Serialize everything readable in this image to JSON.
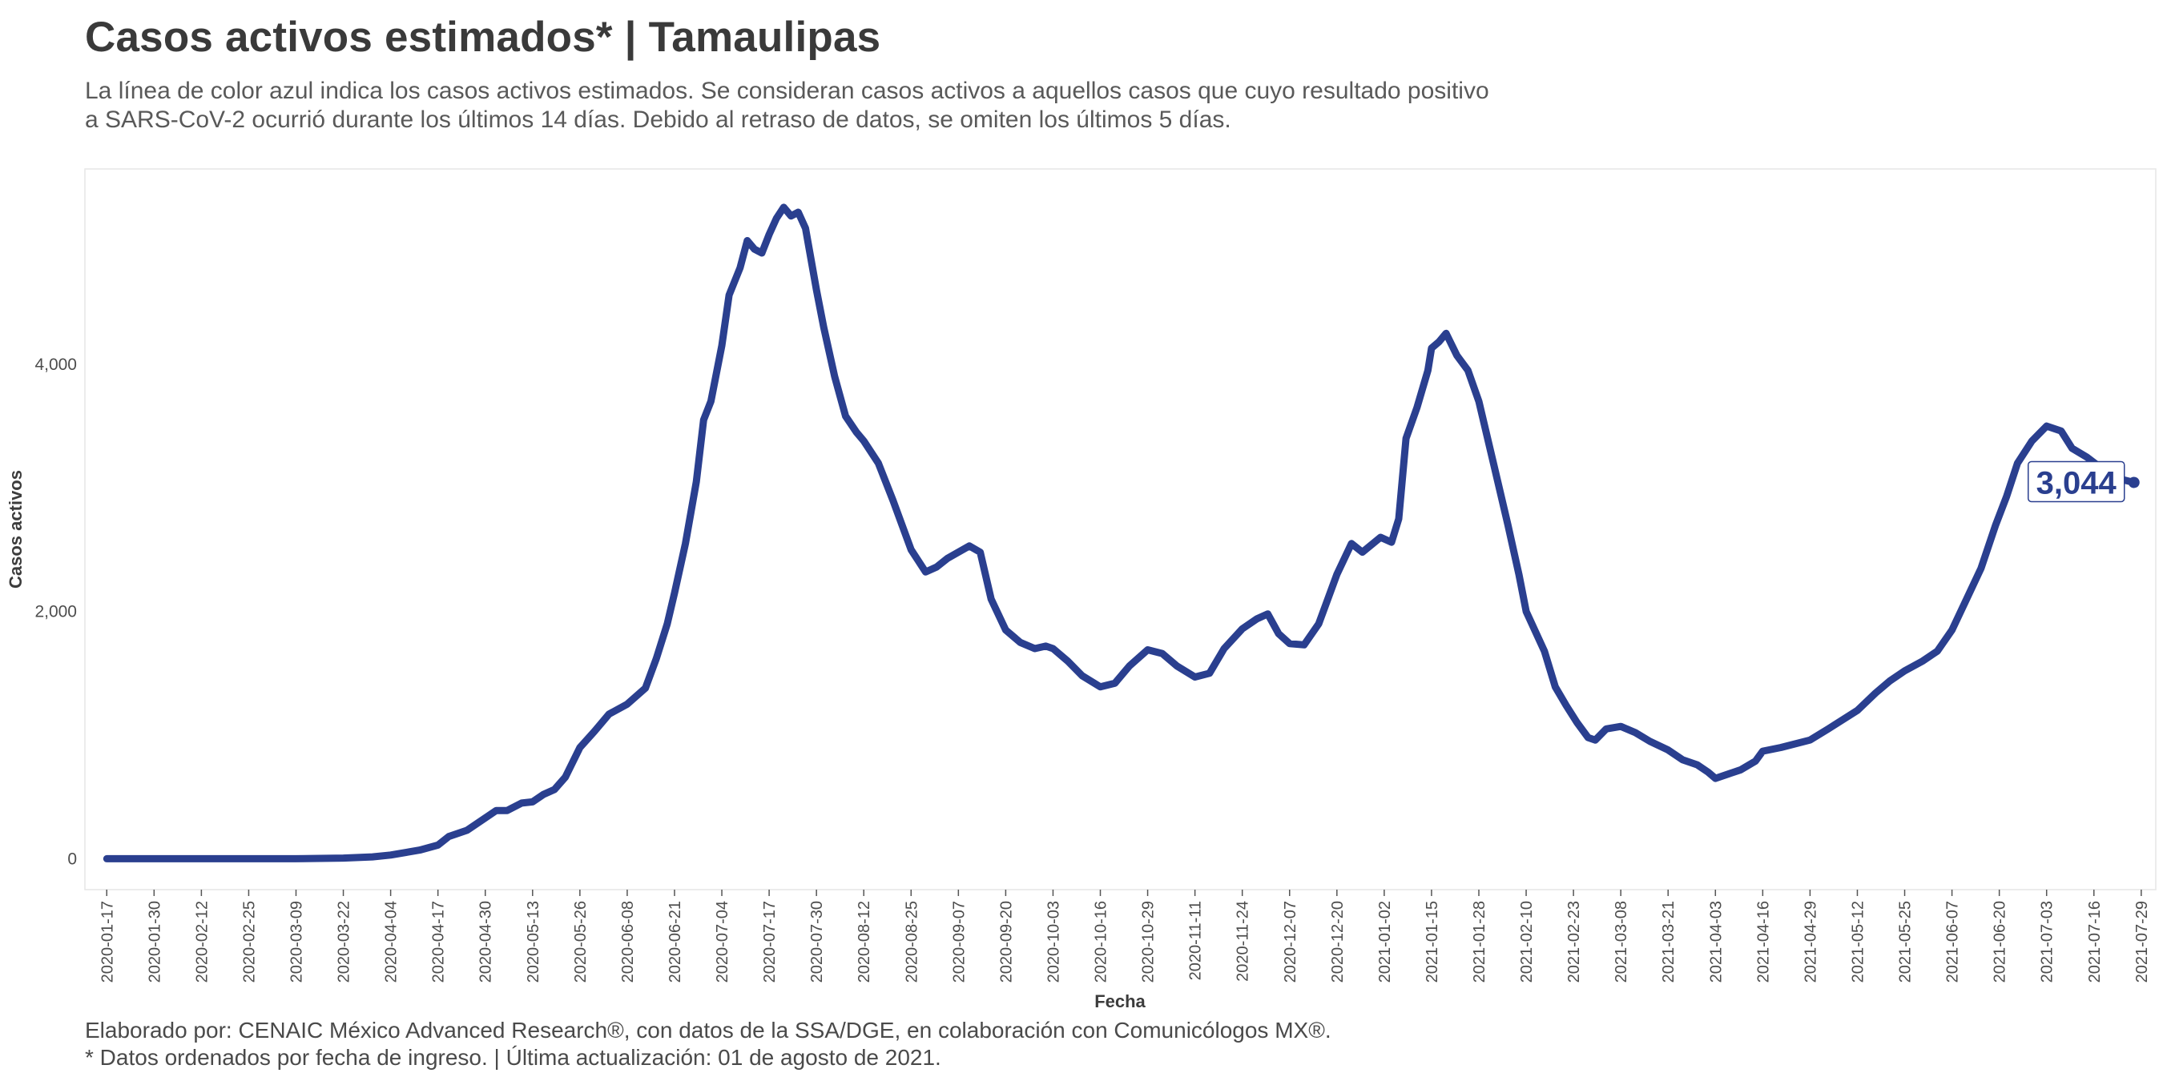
{
  "header": {
    "title": "Casos activos estimados* | Tamaulipas",
    "subtitle_line1": "La línea de color azul indica los casos activos estimados. Se consideran casos activos a aquellos casos que cuyo resultado positivo",
    "subtitle_line2": "a SARS-CoV-2 ocurrió durante los últimos 14 días. Debido al retraso de datos, se omiten los últimos 5 días."
  },
  "caption": {
    "line1": "Elaborado por: CENAIC México Advanced Research®, con datos de la SSA/DGE, en colaboración con Comunicólogos MX®.",
    "line2": "* Datos ordenados por fecha de ingreso. | Última actualización: 01 de agosto de 2021."
  },
  "chart_data": {
    "type": "line",
    "xlabel": "Fecha",
    "ylabel": "Casos activos",
    "xlim": [
      "2020-01-11",
      "2021-08-02"
    ],
    "ylim": [
      -250,
      5580
    ],
    "y_ticks": [
      0,
      2000,
      4000
    ],
    "y_tick_labels": [
      "0",
      "2,000",
      "4,000"
    ],
    "x_tick_labels": [
      "2020-01-17",
      "2020-01-30",
      "2020-02-12",
      "2020-02-25",
      "2020-03-09",
      "2020-03-22",
      "2020-04-04",
      "2020-04-17",
      "2020-04-30",
      "2020-05-13",
      "2020-05-26",
      "2020-06-08",
      "2020-06-21",
      "2020-07-04",
      "2020-07-17",
      "2020-07-30",
      "2020-08-12",
      "2020-08-25",
      "2020-09-07",
      "2020-09-20",
      "2020-10-03",
      "2020-10-16",
      "2020-10-29",
      "2020-11-11",
      "2020-11-24",
      "2020-12-07",
      "2020-12-20",
      "2021-01-02",
      "2021-01-15",
      "2021-01-28",
      "2021-02-10",
      "2021-02-23",
      "2021-03-08",
      "2021-03-21",
      "2021-04-03",
      "2021-04-16",
      "2021-04-29",
      "2021-05-12",
      "2021-05-25",
      "2021-06-07",
      "2021-06-20",
      "2021-07-03",
      "2021-07-16",
      "2021-07-29"
    ],
    "grid": false,
    "line_color": "#2a3f8f",
    "last_value_label": "3,044",
    "series": [
      {
        "points": [
          [
            "2020-01-17",
            0
          ],
          [
            "2020-02-12",
            0
          ],
          [
            "2020-03-09",
            0
          ],
          [
            "2020-03-22",
            5
          ],
          [
            "2020-03-30",
            15
          ],
          [
            "2020-04-04",
            30
          ],
          [
            "2020-04-12",
            70
          ],
          [
            "2020-04-17",
            110
          ],
          [
            "2020-04-20",
            180
          ],
          [
            "2020-04-25",
            230
          ],
          [
            "2020-04-30",
            330
          ],
          [
            "2020-05-03",
            390
          ],
          [
            "2020-05-06",
            390
          ],
          [
            "2020-05-10",
            450
          ],
          [
            "2020-05-13",
            460
          ],
          [
            "2020-05-16",
            520
          ],
          [
            "2020-05-19",
            560
          ],
          [
            "2020-05-22",
            660
          ],
          [
            "2020-05-26",
            900
          ],
          [
            "2020-05-30",
            1030
          ],
          [
            "2020-06-03",
            1170
          ],
          [
            "2020-06-08",
            1250
          ],
          [
            "2020-06-13",
            1380
          ],
          [
            "2020-06-16",
            1620
          ],
          [
            "2020-06-19",
            1900
          ],
          [
            "2020-06-21",
            2150
          ],
          [
            "2020-06-24",
            2550
          ],
          [
            "2020-06-27",
            3050
          ],
          [
            "2020-06-29",
            3550
          ],
          [
            "2020-07-01",
            3700
          ],
          [
            "2020-07-04",
            4150
          ],
          [
            "2020-07-06",
            4560
          ],
          [
            "2020-07-09",
            4780
          ],
          [
            "2020-07-11",
            5000
          ],
          [
            "2020-07-13",
            4930
          ],
          [
            "2020-07-15",
            4900
          ],
          [
            "2020-07-17",
            5050
          ],
          [
            "2020-07-19",
            5180
          ],
          [
            "2020-07-21",
            5270
          ],
          [
            "2020-07-23",
            5200
          ],
          [
            "2020-07-25",
            5230
          ],
          [
            "2020-07-27",
            5100
          ],
          [
            "2020-07-30",
            4600
          ],
          [
            "2020-08-01",
            4300
          ],
          [
            "2020-08-04",
            3900
          ],
          [
            "2020-08-07",
            3580
          ],
          [
            "2020-08-10",
            3450
          ],
          [
            "2020-08-12",
            3380
          ],
          [
            "2020-08-16",
            3200
          ],
          [
            "2020-08-20",
            2900
          ],
          [
            "2020-08-25",
            2500
          ],
          [
            "2020-08-29",
            2320
          ],
          [
            "2020-09-01",
            2360
          ],
          [
            "2020-09-04",
            2430
          ],
          [
            "2020-09-07",
            2480
          ],
          [
            "2020-09-10",
            2530
          ],
          [
            "2020-09-13",
            2480
          ],
          [
            "2020-09-16",
            2100
          ],
          [
            "2020-09-20",
            1850
          ],
          [
            "2020-09-24",
            1750
          ],
          [
            "2020-09-28",
            1700
          ],
          [
            "2020-10-01",
            1720
          ],
          [
            "2020-10-03",
            1700
          ],
          [
            "2020-10-07",
            1600
          ],
          [
            "2020-10-11",
            1480
          ],
          [
            "2020-10-16",
            1390
          ],
          [
            "2020-10-20",
            1420
          ],
          [
            "2020-10-24",
            1560
          ],
          [
            "2020-10-29",
            1690
          ],
          [
            "2020-11-02",
            1660
          ],
          [
            "2020-11-06",
            1560
          ],
          [
            "2020-11-11",
            1470
          ],
          [
            "2020-11-15",
            1500
          ],
          [
            "2020-11-19",
            1700
          ],
          [
            "2020-11-24",
            1860
          ],
          [
            "2020-11-28",
            1940
          ],
          [
            "2020-12-01",
            1980
          ],
          [
            "2020-12-04",
            1820
          ],
          [
            "2020-12-07",
            1740
          ],
          [
            "2020-12-11",
            1730
          ],
          [
            "2020-12-15",
            1900
          ],
          [
            "2020-12-20",
            2300
          ],
          [
            "2020-12-24",
            2550
          ],
          [
            "2020-12-27",
            2480
          ],
          [
            "2021-01-01",
            2600
          ],
          [
            "2021-01-04",
            2560
          ],
          [
            "2021-01-06",
            2750
          ],
          [
            "2021-01-08",
            3400
          ],
          [
            "2021-01-11",
            3650
          ],
          [
            "2021-01-14",
            3950
          ],
          [
            "2021-01-15",
            4130
          ],
          [
            "2021-01-17",
            4180
          ],
          [
            "2021-01-19",
            4250
          ],
          [
            "2021-01-22",
            4070
          ],
          [
            "2021-01-25",
            3950
          ],
          [
            "2021-01-28",
            3700
          ],
          [
            "2021-02-01",
            3200
          ],
          [
            "2021-02-05",
            2700
          ],
          [
            "2021-02-08",
            2300
          ],
          [
            "2021-02-10",
            2000
          ],
          [
            "2021-02-15",
            1680
          ],
          [
            "2021-02-18",
            1390
          ],
          [
            "2021-02-21",
            1240
          ],
          [
            "2021-02-24",
            1100
          ],
          [
            "2021-02-27",
            980
          ],
          [
            "2021-03-01",
            960
          ],
          [
            "2021-03-04",
            1050
          ],
          [
            "2021-03-08",
            1070
          ],
          [
            "2021-03-12",
            1020
          ],
          [
            "2021-03-16",
            950
          ],
          [
            "2021-03-21",
            880
          ],
          [
            "2021-03-25",
            800
          ],
          [
            "2021-03-29",
            760
          ],
          [
            "2021-04-01",
            700
          ],
          [
            "2021-04-03",
            650
          ],
          [
            "2021-04-07",
            690
          ],
          [
            "2021-04-10",
            720
          ],
          [
            "2021-04-14",
            790
          ],
          [
            "2021-04-16",
            870
          ],
          [
            "2021-04-21",
            900
          ],
          [
            "2021-04-29",
            960
          ],
          [
            "2021-05-04",
            1050
          ],
          [
            "2021-05-12",
            1200
          ],
          [
            "2021-05-17",
            1340
          ],
          [
            "2021-05-21",
            1440
          ],
          [
            "2021-05-25",
            1520
          ],
          [
            "2021-05-30",
            1600
          ],
          [
            "2021-06-03",
            1680
          ],
          [
            "2021-06-07",
            1850
          ],
          [
            "2021-06-11",
            2100
          ],
          [
            "2021-06-15",
            2350
          ],
          [
            "2021-06-19",
            2700
          ],
          [
            "2021-06-22",
            2930
          ],
          [
            "2021-06-25",
            3200
          ],
          [
            "2021-06-29",
            3380
          ],
          [
            "2021-07-03",
            3500
          ],
          [
            "2021-07-07",
            3460
          ],
          [
            "2021-07-10",
            3320
          ],
          [
            "2021-07-14",
            3250
          ],
          [
            "2021-07-18",
            3160
          ],
          [
            "2021-07-22",
            3080
          ],
          [
            "2021-07-27",
            3044
          ]
        ]
      }
    ]
  }
}
